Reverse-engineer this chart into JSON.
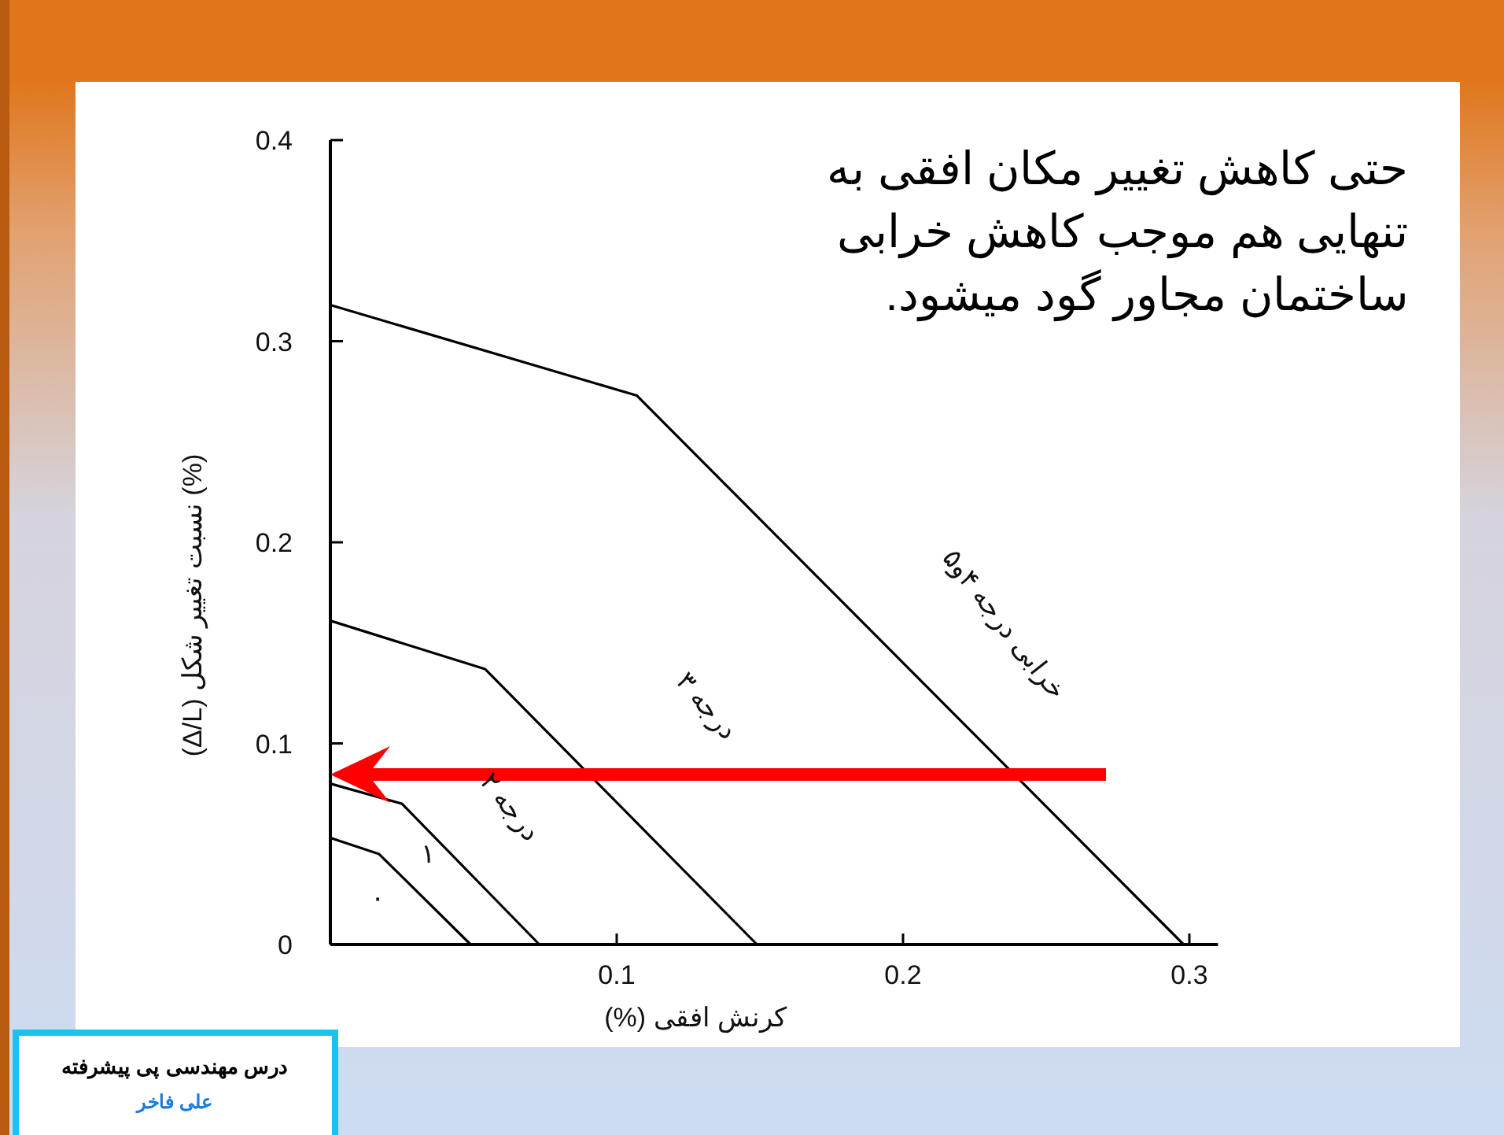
{
  "chart_data": {
    "type": "line",
    "xlabel": "کرنش افقی (%)",
    "ylabel": "(%) نسبت تغییر شکل (Δ/L)",
    "xlim": [
      0,
      0.31
    ],
    "ylim": [
      0,
      0.4
    ],
    "xticks": [
      0.1,
      0.2,
      0.3
    ],
    "yticks": [
      0,
      0.1,
      0.2,
      0.3,
      0.4
    ],
    "series": [
      {
        "color": "#000000",
        "x": [
          0,
          0.017,
          0.049
        ],
        "values": [
          0.053,
          0.045,
          0
        ]
      },
      {
        "color": "#000000",
        "x": [
          0,
          0.025,
          0.073
        ],
        "values": [
          0.08,
          0.07,
          0
        ]
      },
      {
        "color": "#000000",
        "x": [
          0,
          0.054,
          0.149
        ],
        "values": [
          0.161,
          0.137,
          0
        ]
      },
      {
        "color": "#000000",
        "x": [
          0,
          0.107,
          0.298
        ],
        "values": [
          0.318,
          0.273,
          0
        ]
      }
    ],
    "annotations": [
      "حتی کاهش تغییر مکان افقی به تنهایی هم موجب کاهش خرابی ساختمان مجاور گود میشود.",
      "۰",
      "۱",
      "درجه ۲",
      "درجه ۳",
      "خرابی درجه ۴و۵",
      "درس مهندسی پی پیشرفته",
      "علی فاخر"
    ]
  }
}
